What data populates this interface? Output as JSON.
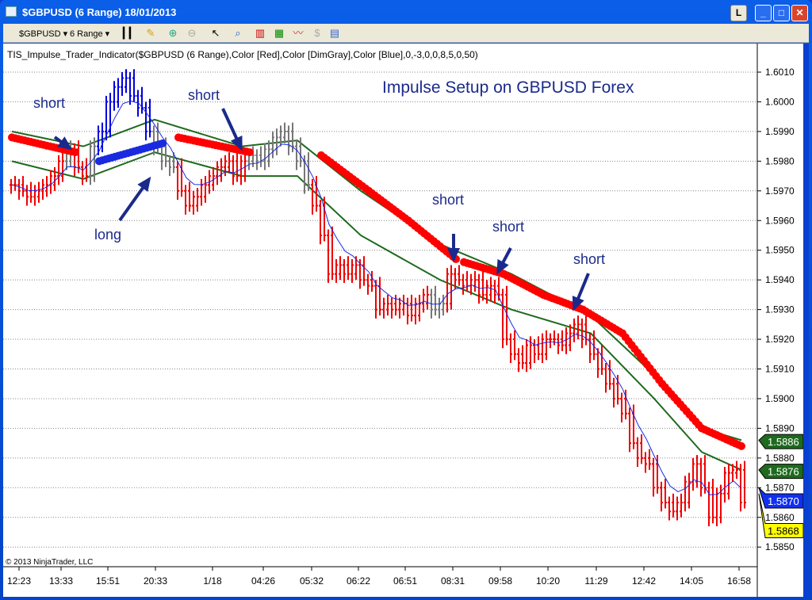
{
  "window": {
    "title": "$GBPUSD (6 Range)  18/01/2013",
    "buttons": [
      "L",
      "_",
      "□",
      "✕"
    ]
  },
  "toolbar": {
    "instrument": "$GBPUSD",
    "period": "6 Range"
  },
  "indicator_label": "TIS_Impulse_Trader_Indicator($GBPUSD (6 Range),Color [Red],Color [DimGray],Color [Blue],0,-3,0,0,8,5,0,50)",
  "copyright": "© 2013 NinjaTrader, LLC",
  "chart_data": {
    "type": "range-bar",
    "title": "Impulse Setup on GBPUSD Forex",
    "ylim": [
      1.5845,
      1.6022
    ],
    "y_ticks": [
      "1.6010",
      "1.6000",
      "1.5990",
      "1.5980",
      "1.5970",
      "1.5960",
      "1.5950",
      "1.5940",
      "1.5930",
      "1.5920",
      "1.5910",
      "1.5900",
      "1.5890",
      "1.5880",
      "1.5870",
      "1.5860",
      "1.5850"
    ],
    "x_ticks": [
      "12:23",
      "13:33",
      "15:51",
      "20:33",
      "1/18",
      "04:26",
      "05:32",
      "06:22",
      "06:51",
      "08:31",
      "09:58",
      "10:20",
      "11:29",
      "12:42",
      "14:05",
      "16:58"
    ],
    "closes": [
      1.5972,
      1.597,
      1.5968,
      1.597,
      1.5972,
      1.5975,
      1.598,
      1.5984,
      1.5978,
      1.5975,
      1.5985,
      1.599,
      1.6,
      1.6005,
      1.6008,
      1.6002,
      1.5998,
      1.599,
      1.5985,
      1.598,
      1.5978,
      1.597,
      1.5965,
      1.5968,
      1.5972,
      1.5975,
      1.5978,
      1.598,
      1.5975,
      1.598,
      1.5982,
      1.598,
      1.5984,
      1.5988,
      1.599,
      1.5985,
      1.598,
      1.5972,
      1.5965,
      1.5955,
      1.5942,
      1.5945,
      1.5942,
      1.5945,
      1.594,
      1.5938,
      1.593,
      1.5932,
      1.593,
      1.5932,
      1.5928,
      1.5932,
      1.5935,
      1.593,
      1.5932,
      1.5942,
      1.594,
      1.5938,
      1.594,
      1.5935,
      1.5938,
      1.5935,
      1.592,
      1.5915,
      1.5912,
      1.5918,
      1.5915,
      1.592,
      1.592,
      1.5918,
      1.5922,
      1.5925,
      1.592,
      1.5915,
      1.591,
      1.5905,
      1.59,
      1.5895,
      1.5885,
      1.588,
      1.5878,
      1.587,
      1.5865,
      1.5862,
      1.5865,
      1.5872,
      1.5878,
      1.587,
      1.586,
      1.5868,
      1.5875,
      1.5876,
      1.5865
    ],
    "bar_colors": "RRRRRRRGRRGBBBBBBBGGGRRRRRRRRRGGGGGGGGRRRRRRRRRRRRRRRGGRRRRRRRRRRRRRRRRRRRRRRRRRRRRRRRRRRRRRRRRRG",
    "signal_segments": [
      {
        "color": "red",
        "points": [
          [
            0,
            1.5988
          ],
          [
            8,
            1.5983
          ]
        ]
      },
      {
        "color": "blue",
        "points": [
          [
            11,
            1.598
          ],
          [
            19,
            1.5986
          ]
        ]
      },
      {
        "color": "red",
        "points": [
          [
            21,
            1.5988
          ],
          [
            30,
            1.5983
          ]
        ]
      },
      {
        "color": "red",
        "points": [
          [
            39,
            1.5982
          ],
          [
            45,
            1.597
          ],
          [
            50,
            1.596
          ],
          [
            56,
            1.5947
          ]
        ]
      },
      {
        "color": "red",
        "points": [
          [
            57,
            1.5946
          ],
          [
            62,
            1.5942
          ],
          [
            67,
            1.5935
          ],
          [
            72,
            1.593
          ],
          [
            77,
            1.5922
          ],
          [
            82,
            1.5905
          ],
          [
            87,
            1.589
          ],
          [
            92,
            1.5884
          ]
        ]
      }
    ],
    "band_upper": [
      [
        0,
        1.599
      ],
      [
        9,
        1.5985
      ],
      [
        18,
        1.5994
      ],
      [
        29,
        1.5985
      ],
      [
        36,
        1.5987
      ],
      [
        44,
        1.597
      ],
      [
        54,
        1.5952
      ],
      [
        63,
        1.5942
      ],
      [
        73,
        1.5928
      ],
      [
        81,
        1.5908
      ],
      [
        87,
        1.589
      ],
      [
        92,
        1.5886
      ]
    ],
    "band_lower": [
      [
        0,
        1.598
      ],
      [
        9,
        1.5974
      ],
      [
        18,
        1.5983
      ],
      [
        29,
        1.5975
      ],
      [
        36,
        1.5975
      ],
      [
        44,
        1.5955
      ],
      [
        54,
        1.594
      ],
      [
        63,
        1.593
      ],
      [
        73,
        1.5922
      ],
      [
        81,
        1.59
      ],
      [
        87,
        1.5882
      ],
      [
        92,
        1.5876
      ]
    ],
    "annotations": [
      {
        "text": "short"
      },
      {
        "text": "long"
      },
      {
        "text": "short"
      },
      {
        "text": "short"
      },
      {
        "text": "short"
      },
      {
        "text": "short"
      }
    ],
    "price_tags": [
      {
        "value": "1.5886",
        "color": "#1e6a1e"
      },
      {
        "value": "1.5876",
        "color": "#1e6a1e"
      },
      {
        "value": "1.5870",
        "color": "#1030f0"
      },
      {
        "value": "1.5868",
        "color": "#ffff00"
      }
    ]
  }
}
